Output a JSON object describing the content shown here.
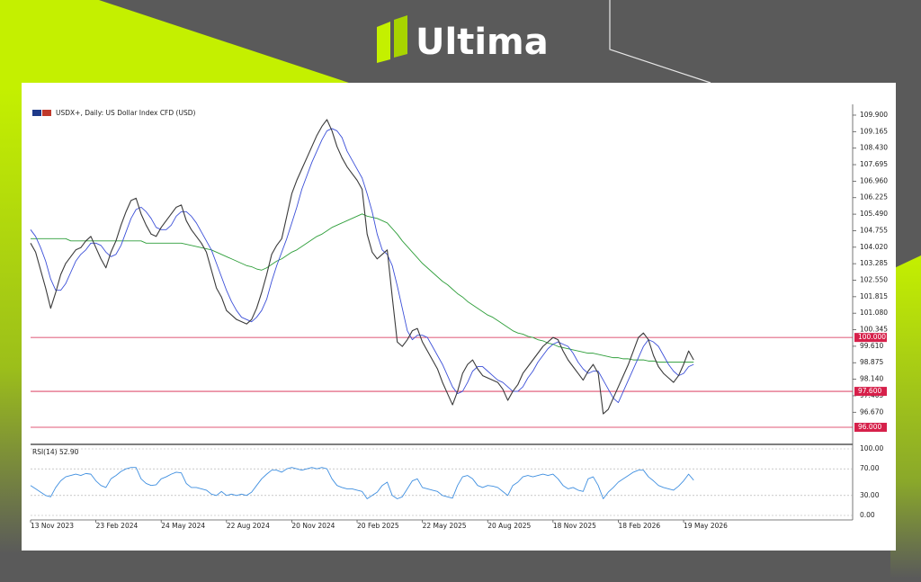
{
  "brand": "Ultima",
  "chart_data": {
    "type": "line",
    "title": "USDX+, Daily:  US Dollar Index CFD (USD)",
    "categories": [
      "13 Nov 2023",
      null,
      null,
      null,
      null,
      null,
      null,
      null,
      null,
      null,
      null,
      null,
      null,
      "23 Feb 2024",
      null,
      null,
      null,
      null,
      null,
      null,
      null,
      null,
      null,
      null,
      null,
      null,
      "24 May 2024",
      null,
      null,
      null,
      null,
      null,
      null,
      null,
      null,
      null,
      null,
      null,
      null,
      "22 Aug 2024",
      null,
      null,
      null,
      null,
      null,
      null,
      null,
      null,
      null,
      null,
      null,
      null,
      "20 Nov 2024",
      null,
      null,
      null,
      null,
      null,
      null,
      null,
      null,
      null,
      null,
      null,
      null,
      "20 Feb 2025",
      null,
      null,
      null,
      null,
      null,
      null,
      null,
      null,
      null,
      null,
      null,
      null,
      "22 May 2025",
      null,
      null,
      null,
      null,
      null,
      null,
      null,
      null,
      null,
      null,
      null,
      null,
      "20 Aug 2025",
      null,
      null,
      null,
      null,
      null,
      null,
      null,
      null,
      null,
      null,
      null,
      null,
      "18 Nov 2025",
      null,
      null,
      null,
      null,
      null,
      null,
      null,
      null,
      null,
      null,
      null,
      null,
      "18 Feb 2026",
      null,
      null,
      null,
      null,
      null,
      null,
      null,
      null,
      null,
      null,
      null,
      null,
      "19 May 2026",
      null,
      null
    ],
    "series": [
      {
        "color": "#3a3a3a",
        "values": [
          104.2,
          103.8,
          103.0,
          102.2,
          101.3,
          102.0,
          102.8,
          103.3,
          103.6,
          103.9,
          104.0,
          104.3,
          104.5,
          104.0,
          103.5,
          103.1,
          103.8,
          104.3,
          105.0,
          105.6,
          106.1,
          106.2,
          105.5,
          105.0,
          104.6,
          104.5,
          104.9,
          105.2,
          105.5,
          105.8,
          105.9,
          105.2,
          104.8,
          104.5,
          104.2,
          103.8,
          103.0,
          102.2,
          101.8,
          101.2,
          101.0,
          100.8,
          100.7,
          100.6,
          100.8,
          101.3,
          102.0,
          102.8,
          103.7,
          104.1,
          104.4,
          105.4,
          106.4,
          107.0,
          107.5,
          108.0,
          108.5,
          109.0,
          109.4,
          109.7,
          109.2,
          108.5,
          108.0,
          107.6,
          107.3,
          107.0,
          106.6,
          104.6,
          103.8,
          103.5,
          103.7,
          103.9,
          101.8,
          99.8,
          99.6,
          99.9,
          100.3,
          100.4,
          99.8,
          99.4,
          99.0,
          98.6,
          98.0,
          97.5,
          97.0,
          97.6,
          98.4,
          98.8,
          99.0,
          98.6,
          98.3,
          98.2,
          98.1,
          98.0,
          97.7,
          97.2,
          97.6,
          97.9,
          98.4,
          98.7,
          99.0,
          99.3,
          99.6,
          99.8,
          100.0,
          99.9,
          99.4,
          99.0,
          98.7,
          98.4,
          98.1,
          98.5,
          98.8,
          98.4,
          96.6,
          96.8,
          97.3,
          97.8,
          98.3,
          98.8,
          99.4,
          100.0,
          100.2,
          99.9,
          99.2,
          98.7,
          98.4,
          98.2,
          98.0,
          98.3,
          98.8,
          99.4,
          99.0
        ]
      },
      {
        "color": "#3b4fd8",
        "values": [
          104.8,
          104.5,
          104.0,
          103.4,
          102.6,
          102.1,
          102.1,
          102.4,
          102.9,
          103.4,
          103.7,
          103.9,
          104.2,
          104.2,
          104.1,
          103.8,
          103.6,
          103.7,
          104.1,
          104.7,
          105.3,
          105.7,
          105.8,
          105.6,
          105.3,
          104.9,
          104.8,
          104.8,
          105.0,
          105.4,
          105.6,
          105.6,
          105.4,
          105.1,
          104.7,
          104.3,
          103.9,
          103.3,
          102.7,
          102.1,
          101.6,
          101.2,
          100.9,
          100.8,
          100.7,
          100.9,
          101.2,
          101.7,
          102.5,
          103.2,
          103.8,
          104.4,
          105.1,
          105.8,
          106.6,
          107.2,
          107.8,
          108.3,
          108.8,
          109.2,
          109.3,
          109.2,
          108.9,
          108.3,
          107.9,
          107.5,
          107.1,
          106.4,
          105.6,
          104.6,
          103.9,
          103.7,
          103.2,
          102.3,
          101.3,
          100.3,
          99.9,
          100.1,
          100.1,
          100.0,
          99.6,
          99.2,
          98.8,
          98.3,
          97.8,
          97.5,
          97.6,
          98.0,
          98.5,
          98.7,
          98.7,
          98.5,
          98.3,
          98.1,
          98.0,
          97.8,
          97.6,
          97.6,
          97.8,
          98.2,
          98.5,
          98.9,
          99.2,
          99.5,
          99.7,
          99.8,
          99.7,
          99.6,
          99.3,
          98.9,
          98.6,
          98.4,
          98.5,
          98.5,
          98.1,
          97.7,
          97.3,
          97.1,
          97.6,
          98.1,
          98.6,
          99.1,
          99.6,
          99.9,
          99.8,
          99.6,
          99.2,
          98.8,
          98.5,
          98.3,
          98.4,
          98.7,
          98.8
        ]
      },
      {
        "color": "#2e9e3a",
        "values": [
          104.4,
          104.4,
          104.4,
          104.4,
          104.4,
          104.4,
          104.4,
          104.4,
          104.3,
          104.3,
          104.3,
          104.3,
          104.3,
          104.3,
          104.3,
          104.3,
          104.3,
          104.3,
          104.3,
          104.3,
          104.3,
          104.3,
          104.3,
          104.2,
          104.2,
          104.2,
          104.2,
          104.2,
          104.2,
          104.2,
          104.2,
          104.15,
          104.1,
          104.05,
          104.0,
          103.95,
          103.9,
          103.8,
          103.7,
          103.6,
          103.5,
          103.4,
          103.3,
          103.2,
          103.15,
          103.05,
          103.0,
          103.1,
          103.25,
          103.4,
          103.5,
          103.65,
          103.8,
          103.9,
          104.05,
          104.2,
          104.35,
          104.5,
          104.6,
          104.75,
          104.9,
          105.0,
          105.1,
          105.2,
          105.3,
          105.4,
          105.5,
          105.4,
          105.35,
          105.3,
          105.2,
          105.1,
          104.85,
          104.6,
          104.3,
          104.05,
          103.8,
          103.55,
          103.3,
          103.1,
          102.9,
          102.7,
          102.5,
          102.35,
          102.15,
          101.95,
          101.8,
          101.6,
          101.45,
          101.3,
          101.15,
          101.0,
          100.9,
          100.75,
          100.6,
          100.45,
          100.3,
          100.2,
          100.15,
          100.05,
          100.0,
          99.9,
          99.85,
          99.75,
          99.7,
          99.6,
          99.55,
          99.5,
          99.45,
          99.4,
          99.35,
          99.3,
          99.3,
          99.25,
          99.2,
          99.15,
          99.1,
          99.1,
          99.05,
          99.05,
          99.0,
          99.0,
          99.0,
          98.95,
          98.95,
          98.9,
          98.9,
          98.9,
          98.9,
          98.9,
          98.9,
          98.9,
          98.9
        ]
      }
    ],
    "ylim": [
      95.28,
      110.3
    ],
    "yticks": [
      {
        "value": 109.9,
        "label": "109.900"
      },
      {
        "value": 109.165,
        "label": "109.165"
      },
      {
        "value": 108.43,
        "label": "108.430"
      },
      {
        "value": 107.695,
        "label": "107.695"
      },
      {
        "value": 106.96,
        "label": "106.960"
      },
      {
        "value": 106.225,
        "label": "106.225"
      },
      {
        "value": 105.49,
        "label": "105.490"
      },
      {
        "value": 104.755,
        "label": "104.755"
      },
      {
        "value": 104.02,
        "label": "104.020"
      },
      {
        "value": 103.285,
        "label": "103.285"
      },
      {
        "value": 102.55,
        "label": "102.550"
      },
      {
        "value": 101.815,
        "label": "101.815"
      },
      {
        "value": 101.08,
        "label": "101.080"
      },
      {
        "value": 100.345,
        "label": "100.345"
      },
      {
        "value": 99.61,
        "label": "99.610"
      },
      {
        "value": 98.875,
        "label": "98.875"
      },
      {
        "value": 98.14,
        "label": "98.140"
      },
      {
        "value": 97.405,
        "label": "97.405"
      },
      {
        "value": 96.67,
        "label": "96.670"
      }
    ],
    "hlines": [
      {
        "value": 100,
        "label": "100.000"
      },
      {
        "value": 97.6,
        "label": "97.600"
      },
      {
        "value": 96,
        "label": "96.000"
      }
    ],
    "hline_color": "#d6204a",
    "rsi": {
      "title": "RSI(14) 52.90",
      "color": "#3f8fe0",
      "values": [
        45,
        40,
        35,
        30,
        28,
        42,
        52,
        58,
        60,
        62,
        60,
        63,
        62,
        52,
        45,
        42,
        55,
        60,
        66,
        70,
        72,
        72,
        55,
        48,
        45,
        46,
        55,
        58,
        62,
        65,
        64,
        48,
        42,
        42,
        40,
        38,
        32,
        30,
        36,
        30,
        32,
        30,
        32,
        30,
        35,
        45,
        55,
        62,
        68,
        68,
        65,
        70,
        72,
        70,
        68,
        70,
        72,
        70,
        72,
        70,
        55,
        45,
        42,
        40,
        40,
        38,
        36,
        25,
        30,
        35,
        45,
        50,
        30,
        25,
        28,
        40,
        52,
        55,
        42,
        40,
        38,
        36,
        30,
        28,
        26,
        45,
        58,
        60,
        55,
        45,
        42,
        45,
        44,
        42,
        36,
        30,
        45,
        50,
        58,
        60,
        58,
        60,
        62,
        60,
        62,
        55,
        45,
        40,
        42,
        38,
        36,
        55,
        58,
        45,
        25,
        35,
        42,
        50,
        55,
        60,
        65,
        68,
        68,
        58,
        52,
        45,
        42,
        40,
        38,
        44,
        52,
        62,
        52.9
      ],
      "ylim": [
        0,
        100
      ],
      "yticks": [
        {
          "value": 100,
          "label": "100.00"
        },
        {
          "value": 70,
          "label": "70.00"
        },
        {
          "value": 30,
          "label": "30.00"
        },
        {
          "value": 0,
          "label": "0.00"
        }
      ]
    }
  }
}
